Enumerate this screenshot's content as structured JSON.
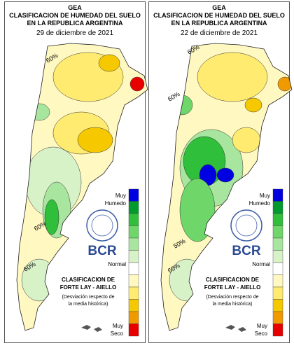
{
  "panels": [
    {
      "title_lines": [
        "GEA",
        "CLASIFICACION DE HUMEDAD DEL SUELO",
        "EN LA REPUBLICA ARGENTINA"
      ],
      "date": "29 de diciembre de 2021",
      "contour_labels": [
        "60%",
        "60%",
        "60%"
      ]
    },
    {
      "title_lines": [
        "GEA",
        "CLASIFICACION DE HUMEDAD DEL SUELO",
        "EN LA REPUBLICA ARGENTINA"
      ],
      "date": "22 de diciembre de 2021",
      "contour_labels": [
        "60%",
        "60%",
        "50%",
        "60%"
      ]
    }
  ],
  "legend": {
    "top_label": [
      "Muy",
      "Humedo"
    ],
    "middle_label": "Normal",
    "bottom_label": [
      "Muy",
      "Seco"
    ],
    "colors": [
      "#0000e0",
      "#009a2e",
      "#2fbf3a",
      "#6fd66a",
      "#a8e6a0",
      "#d8f2c8",
      "#ffffff",
      "#fff8c0",
      "#ffeb70",
      "#f5c800",
      "#f09a00",
      "#e80000"
    ]
  },
  "logo": "BCR",
  "method": [
    "CLASIFICACION DE",
    "FORTE LAY - AIELLO"
  ],
  "note": [
    "(Desviación respecto de",
    "la media histórica)"
  ]
}
